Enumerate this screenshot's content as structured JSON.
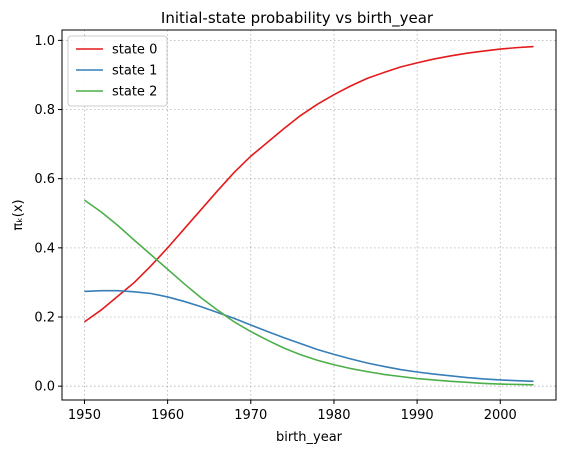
{
  "chart_data": {
    "type": "line",
    "title": "Initial-state probability vs birth_year",
    "xlabel": "birth_year",
    "ylabel": "πₖ(x)",
    "xlim": [
      1947.3,
      2006.7
    ],
    "ylim": [
      -0.04,
      1.03
    ],
    "x_ticks": [
      1950,
      1960,
      1970,
      1980,
      1990,
      2000
    ],
    "y_ticks": [
      0.0,
      0.2,
      0.4,
      0.6,
      0.8,
      1.0
    ],
    "y_tick_labels": [
      "0.0",
      "0.2",
      "0.4",
      "0.6",
      "0.8",
      "1.0"
    ],
    "grid": true,
    "grid_style": "dotted",
    "legend_position": "top-left",
    "x": [
      1950,
      1952,
      1954,
      1956,
      1958,
      1960,
      1962,
      1964,
      1966,
      1968,
      1970,
      1972,
      1974,
      1976,
      1978,
      1980,
      1982,
      1984,
      1986,
      1988,
      1990,
      1992,
      1994,
      1996,
      1998,
      2000,
      2002,
      2004
    ],
    "series": [
      {
        "name": "state 0",
        "color": "#e41a1c",
        "values": [
          0.186,
          0.22,
          0.26,
          0.3,
          0.348,
          0.4,
          0.455,
          0.51,
          0.565,
          0.618,
          0.665,
          0.705,
          0.745,
          0.783,
          0.815,
          0.843,
          0.868,
          0.89,
          0.907,
          0.923,
          0.935,
          0.946,
          0.955,
          0.963,
          0.969,
          0.975,
          0.979,
          0.982
        ]
      },
      {
        "name": "state 1",
        "color": "#377eb8",
        "values": [
          0.274,
          0.276,
          0.276,
          0.273,
          0.268,
          0.258,
          0.245,
          0.23,
          0.213,
          0.196,
          0.177,
          0.158,
          0.14,
          0.123,
          0.106,
          0.092,
          0.079,
          0.067,
          0.057,
          0.048,
          0.041,
          0.035,
          0.03,
          0.025,
          0.021,
          0.018,
          0.016,
          0.014
        ]
      },
      {
        "name": "state 2",
        "color": "#4daf4a",
        "values": [
          0.538,
          0.504,
          0.465,
          0.422,
          0.38,
          0.338,
          0.296,
          0.256,
          0.22,
          0.186,
          0.158,
          0.133,
          0.11,
          0.091,
          0.075,
          0.062,
          0.051,
          0.042,
          0.034,
          0.028,
          0.022,
          0.018,
          0.014,
          0.011,
          0.008,
          0.006,
          0.005,
          0.004
        ]
      }
    ]
  }
}
